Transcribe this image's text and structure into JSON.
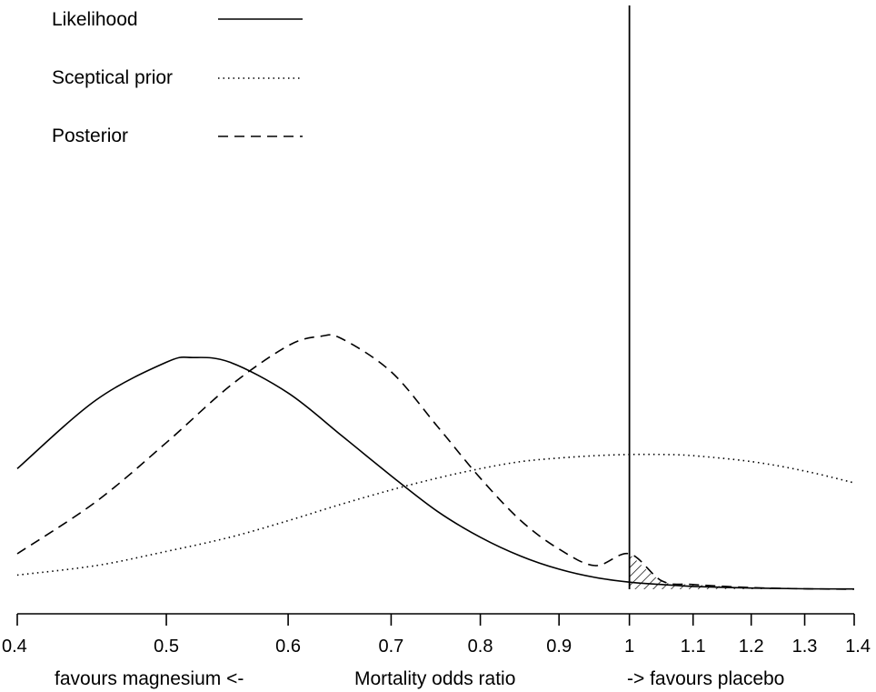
{
  "chart_data": {
    "type": "line",
    "xlabel": "Mortality odds ratio",
    "x_axis_scale": "log",
    "xlim": [
      0.4,
      1.4
    ],
    "ticks": [
      {
        "value": 0.4,
        "label": "0.4"
      },
      {
        "value": 0.5,
        "label": "0.5"
      },
      {
        "value": 0.6,
        "label": "0.6"
      },
      {
        "value": 0.7,
        "label": "0.7"
      },
      {
        "value": 0.8,
        "label": "0.8"
      },
      {
        "value": 0.9,
        "label": "0.9"
      },
      {
        "value": 1.0,
        "label": "1"
      },
      {
        "value": 1.1,
        "label": "1.1"
      },
      {
        "value": 1.2,
        "label": "1.2"
      },
      {
        "value": 1.3,
        "label": "1.3"
      },
      {
        "value": 1.4,
        "label": "1.4"
      }
    ],
    "annotations": {
      "left": "favours magnesium  <-",
      "right": "->  favours placebo"
    },
    "reference_line": 1.0,
    "shaded_region": {
      "series": "Posterior",
      "from": 1.0,
      "to": 1.4,
      "pattern": "hatched"
    },
    "legend_position": "top-left",
    "series": [
      {
        "name": "Likelihood",
        "style": "solid",
        "x": [
          0.4,
          0.45,
          0.5,
          0.52,
          0.55,
          0.6,
          0.65,
          0.7,
          0.75,
          0.8,
          0.85,
          0.9,
          0.95,
          1.0,
          1.05,
          1.1,
          1.2,
          1.3,
          1.4
        ],
        "y": [
          0.51,
          0.8,
          0.96,
          0.98,
          0.96,
          0.83,
          0.65,
          0.48,
          0.33,
          0.22,
          0.14,
          0.085,
          0.05,
          0.03,
          0.02,
          0.012,
          0.005,
          0.002,
          0.001
        ]
      },
      {
        "name": "Sceptical prior",
        "style": "dotted",
        "x": [
          0.4,
          0.45,
          0.5,
          0.55,
          0.6,
          0.65,
          0.7,
          0.75,
          0.8,
          0.85,
          0.9,
          0.95,
          1.0,
          1.05,
          1.1,
          1.2,
          1.3,
          1.4
        ],
        "y": [
          0.06,
          0.1,
          0.16,
          0.22,
          0.29,
          0.36,
          0.42,
          0.47,
          0.51,
          0.54,
          0.555,
          0.565,
          0.57,
          0.57,
          0.565,
          0.54,
          0.5,
          0.45
        ]
      },
      {
        "name": "Posterior",
        "style": "dashed",
        "x": [
          0.4,
          0.45,
          0.5,
          0.55,
          0.6,
          0.63,
          0.65,
          0.7,
          0.75,
          0.8,
          0.85,
          0.9,
          0.95,
          1.0,
          1.05,
          1.1,
          1.2,
          1.3,
          1.4
        ],
        "y": [
          0.15,
          0.37,
          0.62,
          0.86,
          1.03,
          1.07,
          1.06,
          0.92,
          0.69,
          0.47,
          0.29,
          0.17,
          0.1,
          0.15,
          0.035,
          0.02,
          0.007,
          0.002,
          0.0
        ]
      }
    ]
  }
}
